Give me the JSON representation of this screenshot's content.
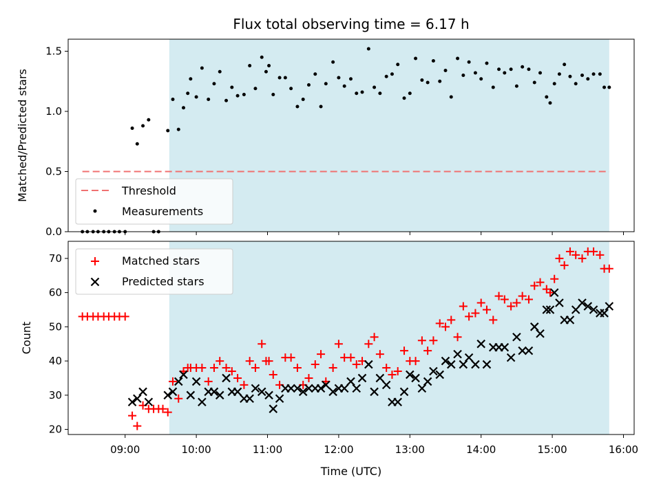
{
  "chart_data": [
    {
      "type": "scatter",
      "title": "Flux total observing time = 6.17 h",
      "ylabel": "Matched/Predicted stars",
      "xlabel": "",
      "xlim": [
        8.2,
        16.15
      ],
      "ylim": [
        0,
        1.6
      ],
      "yticks": [
        0.0,
        0.5,
        1.0,
        1.5
      ],
      "yticklabels": [
        "0.0",
        "0.5",
        "1.0",
        "1.5"
      ],
      "shaded_region": [
        9.62,
        15.8
      ],
      "threshold": {
        "name": "Threshold",
        "value": 0.5,
        "x": [
          8.4,
          15.8
        ],
        "color": "#f07070"
      },
      "series": [
        {
          "name": "Measurements",
          "marker": "dot",
          "color": "#000000",
          "x": [
            8.4,
            8.47,
            8.55,
            8.62,
            8.7,
            8.77,
            8.85,
            8.92,
            9.0,
            9.1,
            9.17,
            9.25,
            9.33,
            9.4,
            9.47,
            9.6,
            9.67,
            9.75,
            9.82,
            9.88,
            9.92,
            10.0,
            10.08,
            10.17,
            10.25,
            10.33,
            10.42,
            10.5,
            10.58,
            10.67,
            10.75,
            10.83,
            10.92,
            10.98,
            11.02,
            11.08,
            11.17,
            11.25,
            11.33,
            11.42,
            11.5,
            11.58,
            11.67,
            11.75,
            11.82,
            11.92,
            12.0,
            12.08,
            12.17,
            12.25,
            12.33,
            12.42,
            12.5,
            12.58,
            12.67,
            12.75,
            12.83,
            12.92,
            13.0,
            13.08,
            13.17,
            13.25,
            13.33,
            13.42,
            13.5,
            13.58,
            13.67,
            13.75,
            13.83,
            13.92,
            14.0,
            14.08,
            14.17,
            14.25,
            14.33,
            14.42,
            14.5,
            14.58,
            14.67,
            14.75,
            14.83,
            14.92,
            14.97,
            15.03,
            15.1,
            15.17,
            15.25,
            15.33,
            15.42,
            15.5,
            15.58,
            15.67,
            15.73,
            15.8
          ],
          "values": [
            0,
            0,
            0,
            0,
            0,
            0,
            0,
            0,
            0,
            0.86,
            0.73,
            0.88,
            0.93,
            0,
            0,
            0.84,
            1.1,
            0.85,
            1.03,
            1.15,
            1.27,
            1.12,
            1.36,
            1.1,
            1.23,
            1.33,
            1.09,
            1.2,
            1.13,
            1.14,
            1.38,
            1.19,
            1.45,
            1.33,
            1.38,
            1.14,
            1.28,
            1.28,
            1.19,
            1.04,
            1.1,
            1.22,
            1.31,
            1.04,
            1.23,
            1.41,
            1.28,
            1.21,
            1.27,
            1.15,
            1.16,
            1.52,
            1.2,
            1.15,
            1.29,
            1.31,
            1.39,
            1.11,
            1.15,
            1.44,
            1.26,
            1.24,
            1.42,
            1.25,
            1.34,
            1.12,
            1.44,
            1.3,
            1.41,
            1.32,
            1.27,
            1.4,
            1.2,
            1.35,
            1.32,
            1.35,
            1.21,
            1.37,
            1.35,
            1.24,
            1.32,
            1.12,
            1.07,
            1.23,
            1.31,
            1.39,
            1.29,
            1.23,
            1.3,
            1.27,
            1.31,
            1.31,
            1.2,
            1.2
          ]
        }
      ],
      "legend": {
        "position": "lower-left",
        "entries": [
          {
            "label": "Threshold",
            "symbol": "dashed-line"
          },
          {
            "label": "Measurements",
            "symbol": "dot"
          }
        ]
      }
    },
    {
      "type": "scatter",
      "title": "",
      "xlabel": "Time (UTC)",
      "ylabel": "Count",
      "xlim": [
        8.2,
        16.15
      ],
      "ylim": [
        18.5,
        75
      ],
      "xticks": [
        9,
        10,
        11,
        12,
        13,
        14,
        15,
        16
      ],
      "xticklabels": [
        "09:00",
        "10:00",
        "11:00",
        "12:00",
        "13:00",
        "14:00",
        "15:00",
        "16:00"
      ],
      "yticks": [
        20,
        30,
        40,
        50,
        60,
        70
      ],
      "yticklabels": [
        "20",
        "30",
        "40",
        "50",
        "60",
        "70"
      ],
      "shaded_region": [
        9.62,
        15.8
      ],
      "series": [
        {
          "name": "Matched stars",
          "marker": "plus",
          "color": "#ff0000",
          "x": [
            8.4,
            8.47,
            8.55,
            8.62,
            8.7,
            8.77,
            8.85,
            8.92,
            9.0,
            9.1,
            9.17,
            9.25,
            9.33,
            9.4,
            9.47,
            9.53,
            9.6,
            9.67,
            9.75,
            9.82,
            9.88,
            9.92,
            10.0,
            10.08,
            10.17,
            10.25,
            10.33,
            10.42,
            10.5,
            10.58,
            10.67,
            10.75,
            10.83,
            10.92,
            10.98,
            11.02,
            11.08,
            11.17,
            11.25,
            11.33,
            11.42,
            11.5,
            11.58,
            11.67,
            11.75,
            11.82,
            11.92,
            12.0,
            12.08,
            12.17,
            12.25,
            12.33,
            12.42,
            12.5,
            12.58,
            12.67,
            12.75,
            12.83,
            12.92,
            13.0,
            13.08,
            13.17,
            13.25,
            13.33,
            13.42,
            13.5,
            13.58,
            13.67,
            13.75,
            13.83,
            13.92,
            14.0,
            14.08,
            14.17,
            14.25,
            14.33,
            14.42,
            14.5,
            14.58,
            14.67,
            14.75,
            14.83,
            14.92,
            14.97,
            15.03,
            15.1,
            15.17,
            15.25,
            15.33,
            15.42,
            15.5,
            15.58,
            15.67,
            15.73,
            15.8
          ],
          "values": [
            53,
            53,
            53,
            53,
            53,
            53,
            53,
            53,
            53,
            24,
            21,
            27,
            26,
            26,
            26,
            26,
            25,
            34,
            29,
            37,
            38,
            38,
            38,
            38,
            34,
            38,
            40,
            38,
            37,
            35,
            33,
            40,
            38,
            45,
            40,
            40,
            36,
            33,
            41,
            41,
            38,
            33,
            35,
            39,
            42,
            34,
            38,
            45,
            41,
            41,
            39,
            40,
            45,
            47,
            42,
            38,
            36,
            37,
            43,
            40,
            40,
            46,
            43,
            46,
            51,
            50,
            52,
            47,
            56,
            53,
            54,
            57,
            55,
            52,
            59,
            58,
            56,
            57,
            59,
            58,
            62,
            63,
            61,
            60,
            64,
            70,
            68,
            72,
            71,
            70,
            72,
            72,
            71,
            67,
            67
          ]
        },
        {
          "name": "Predicted stars",
          "marker": "x",
          "color": "#000000",
          "x": [
            9.1,
            9.17,
            9.25,
            9.33,
            9.6,
            9.67,
            9.75,
            9.82,
            9.92,
            10.0,
            10.08,
            10.17,
            10.25,
            10.33,
            10.42,
            10.5,
            10.58,
            10.67,
            10.75,
            10.83,
            10.92,
            11.02,
            11.08,
            11.17,
            11.25,
            11.33,
            11.42,
            11.5,
            11.58,
            11.67,
            11.75,
            11.82,
            11.92,
            12.0,
            12.08,
            12.17,
            12.25,
            12.33,
            12.42,
            12.5,
            12.58,
            12.67,
            12.75,
            12.83,
            12.92,
            13.0,
            13.08,
            13.17,
            13.25,
            13.33,
            13.42,
            13.5,
            13.58,
            13.67,
            13.75,
            13.83,
            13.92,
            14.0,
            14.08,
            14.17,
            14.25,
            14.33,
            14.42,
            14.5,
            14.58,
            14.67,
            14.75,
            14.83,
            14.92,
            14.97,
            15.03,
            15.1,
            15.17,
            15.25,
            15.33,
            15.42,
            15.5,
            15.58,
            15.67,
            15.73,
            15.8
          ],
          "values": [
            28,
            29,
            31,
            28,
            30,
            31,
            34,
            36,
            30,
            34,
            28,
            31,
            31,
            30,
            35,
            31,
            31,
            29,
            29,
            32,
            31,
            30,
            26,
            29,
            32,
            32,
            32,
            31,
            32,
            32,
            32,
            33,
            31,
            32,
            32,
            34,
            32,
            35,
            39,
            31,
            35,
            33,
            28,
            28,
            31,
            36,
            35,
            32,
            34,
            37,
            36,
            40,
            39,
            42,
            39,
            41,
            39,
            45,
            39,
            44,
            44,
            44,
            41,
            47,
            43,
            43,
            50,
            48,
            55,
            55,
            60,
            57,
            52,
            52,
            55,
            57,
            56,
            55,
            54,
            54,
            56
          ]
        }
      ],
      "legend": {
        "position": "upper-left",
        "entries": [
          {
            "label": "Matched stars",
            "symbol": "plus"
          },
          {
            "label": "Predicted stars",
            "symbol": "x"
          }
        ]
      }
    }
  ],
  "colors": {
    "shade": "#d4ebf1",
    "matched": "#ff0000",
    "predicted": "#000000",
    "threshold": "#f07070"
  }
}
